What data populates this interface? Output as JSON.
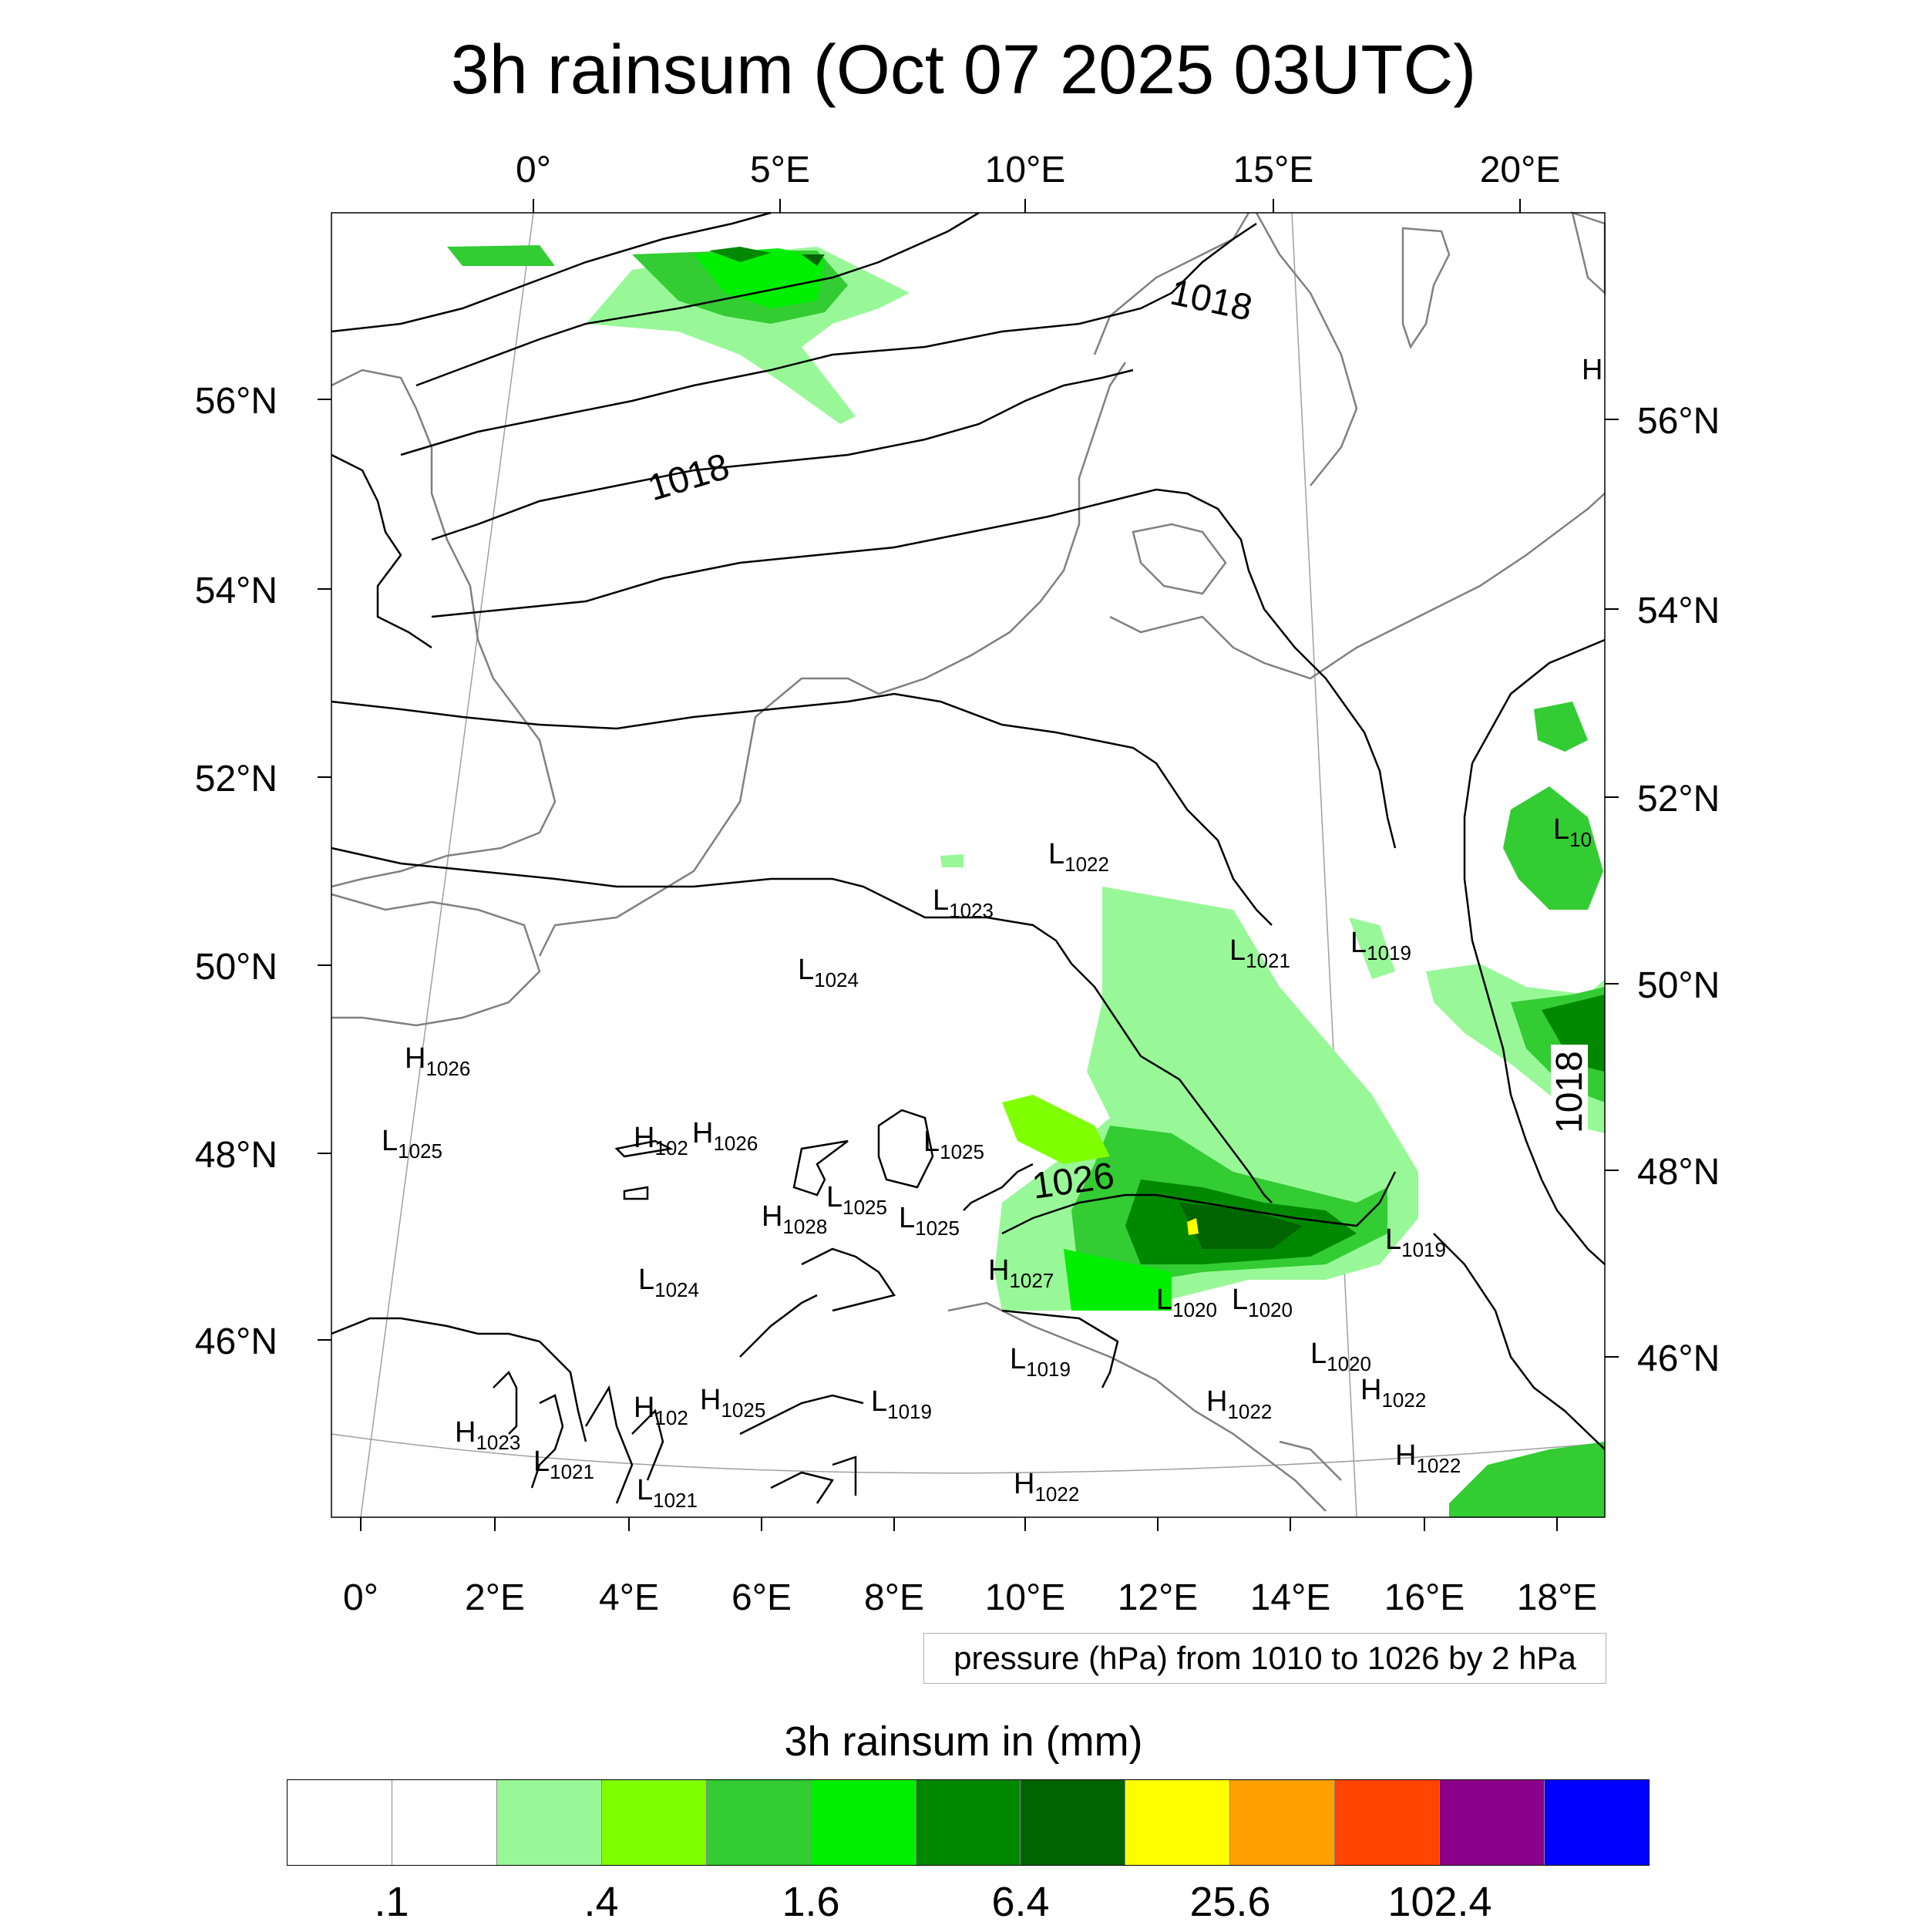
{
  "title": "3h rainsum (Oct 07 2025 03UTC)",
  "top_lon_labels": [
    "0°",
    "5°E",
    "10°E",
    "15°E",
    "20°E"
  ],
  "bottom_lon_labels": [
    "0°",
    "2°E",
    "4°E",
    "6°E",
    "8°E",
    "10°E",
    "12°E",
    "14°E",
    "16°E",
    "18°E"
  ],
  "left_lat_labels": [
    "56°N",
    "54°N",
    "52°N",
    "50°N",
    "48°N",
    "46°N"
  ],
  "right_lat_labels": [
    "56°N",
    "54°N",
    "52°N",
    "50°N",
    "48°N",
    "46°N"
  ],
  "isobar_labels": [
    "1018",
    "1018",
    "1026",
    "1018"
  ],
  "pressure_centers": [
    {
      "type": "L",
      "value": "1022"
    },
    {
      "type": "L",
      "value": "1023"
    },
    {
      "type": "L",
      "value": "1024"
    },
    {
      "type": "L",
      "value": "1021"
    },
    {
      "type": "L",
      "value": "1019"
    },
    {
      "type": "H",
      "value": "1026"
    },
    {
      "type": "L",
      "value": "1025"
    },
    {
      "type": "H",
      "value": "1026"
    },
    {
      "type": "L",
      "value": "1025"
    },
    {
      "type": "L",
      "value": "1025"
    },
    {
      "type": "H",
      "value": "1027"
    },
    {
      "type": "L",
      "value": "1024"
    },
    {
      "type": "L",
      "value": "1020"
    },
    {
      "type": "L",
      "value": "1020"
    },
    {
      "type": "L",
      "value": "1019"
    },
    {
      "type": "L",
      "value": "1019"
    },
    {
      "type": "L",
      "value": "1019"
    },
    {
      "type": "L",
      "value": "1020"
    },
    {
      "type": "H",
      "value": "1022"
    },
    {
      "type": "H",
      "value": "1022"
    },
    {
      "type": "H",
      "value": "1022"
    },
    {
      "type": "H",
      "value": "1022"
    },
    {
      "type": "H",
      "value": "1023"
    },
    {
      "type": "L",
      "value": "1021"
    },
    {
      "type": "L",
      "value": "1021"
    },
    {
      "type": "H",
      "value": "1025"
    },
    {
      "type": "H",
      "value": "102"
    },
    {
      "type": "H",
      "value": "1028"
    },
    {
      "type": "L",
      "value": "1025"
    },
    {
      "type": "H",
      "value": "102"
    },
    {
      "type": "L",
      "value": "10"
    },
    {
      "type": "H",
      "value": ""
    }
  ],
  "pressure_note": "pressure (hPa) from 1010 to 1026 by 2 hPa",
  "colorbar": {
    "title": "3h rainsum in (mm)",
    "colors": [
      "#ffffff",
      "#ffffff",
      "#98f898",
      "#80ff00",
      "#33cc33",
      "#00ee00",
      "#008800",
      "#006400",
      "#ffff00",
      "#ffa000",
      "#ff4400",
      "#8b008b",
      "#0000ff"
    ],
    "tick_labels": [
      ".1",
      ".4",
      "1.6",
      "6.4",
      "25.6",
      "102.4"
    ]
  },
  "colors": {
    "coastline": "#808080",
    "isobar": "#000000",
    "graticule": "#a0a0a0"
  }
}
